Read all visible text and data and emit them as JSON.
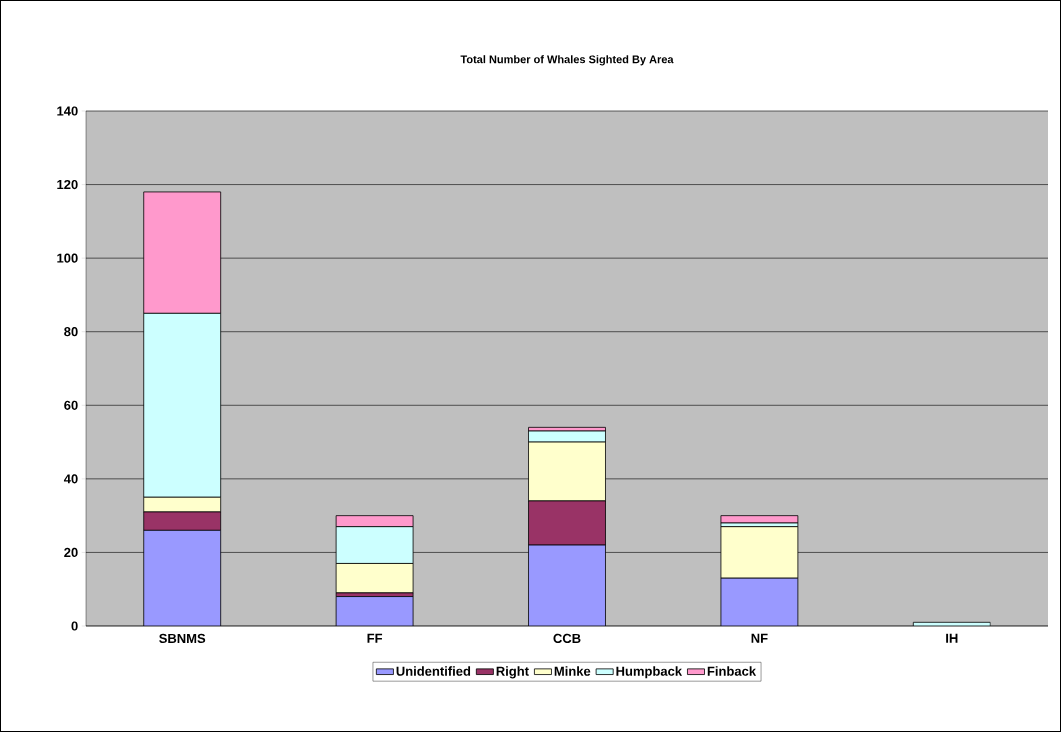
{
  "chart_data": {
    "type": "bar",
    "stacked": true,
    "title": "Total Number of Whales Sighted By Area",
    "categories": [
      "SBNMS",
      "FF",
      "CCB",
      "NF",
      "IH"
    ],
    "series": [
      {
        "name": "Unidentified",
        "color": "#9999ff",
        "values": [
          26,
          8,
          22,
          13,
          0
        ]
      },
      {
        "name": "Right",
        "color": "#993366",
        "values": [
          5,
          1,
          12,
          0,
          0
        ]
      },
      {
        "name": "Minke",
        "color": "#ffffcc",
        "values": [
          4,
          8,
          16,
          14,
          0
        ]
      },
      {
        "name": "Humpback",
        "color": "#ccffff",
        "values": [
          50,
          10,
          3,
          1,
          1
        ]
      },
      {
        "name": "Finback",
        "color": "#ff99cc",
        "values": [
          33,
          3,
          1,
          2,
          0
        ]
      }
    ],
    "ylim": [
      0,
      140
    ],
    "yticks": [
      0,
      20,
      40,
      60,
      80,
      100,
      120,
      140
    ],
    "grid": "y",
    "legend": "bottom"
  }
}
